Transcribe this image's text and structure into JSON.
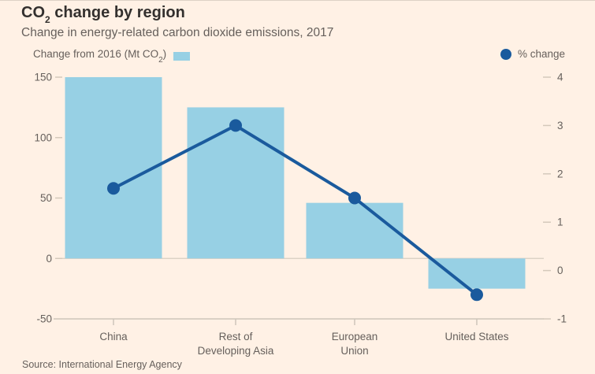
{
  "colors": {
    "background": "#fff1e5",
    "bar": "#97d0e4",
    "line": "#1a5a9d",
    "title_text": "#33302e",
    "gray_text": "#66605c",
    "zero_line": "#ddd3c6",
    "axis_line": "#cdc5ba",
    "tick_dash": "#d4c9bb"
  },
  "chart_data": {
    "type": "bar+line",
    "title": {
      "pre": "CO",
      "sub": "2",
      "post": " change by region"
    },
    "subtitle": "Change in energy-related carbon dioxide emissions, 2017",
    "source": "Source: International Energy Agency",
    "categories": [
      [
        "China"
      ],
      [
        "Rest of",
        "Developing Asia"
      ],
      [
        "European",
        "Union"
      ],
      [
        "United States"
      ]
    ],
    "series": [
      {
        "name": {
          "pre": "Change from 2016 (Mt CO",
          "sub": "2",
          "post": ")"
        },
        "type": "bar",
        "axis": "left",
        "values": [
          150,
          125,
          46,
          -25
        ],
        "color": "#97d0e4"
      },
      {
        "name": "% change",
        "type": "line",
        "axis": "right",
        "values": [
          1.7,
          3.0,
          1.5,
          -0.5
        ],
        "color": "#1a5a9d"
      }
    ],
    "left_axis": {
      "ticks": [
        150,
        100,
        50,
        0,
        -50
      ],
      "range": [
        -50,
        150
      ]
    },
    "right_axis": {
      "ticks": [
        4,
        3,
        2,
        1,
        0,
        -1
      ],
      "range": [
        -1,
        4
      ]
    },
    "grid": "left/right tick dashes only; full-width zero line and bottom baseline",
    "legend_position": "top"
  }
}
